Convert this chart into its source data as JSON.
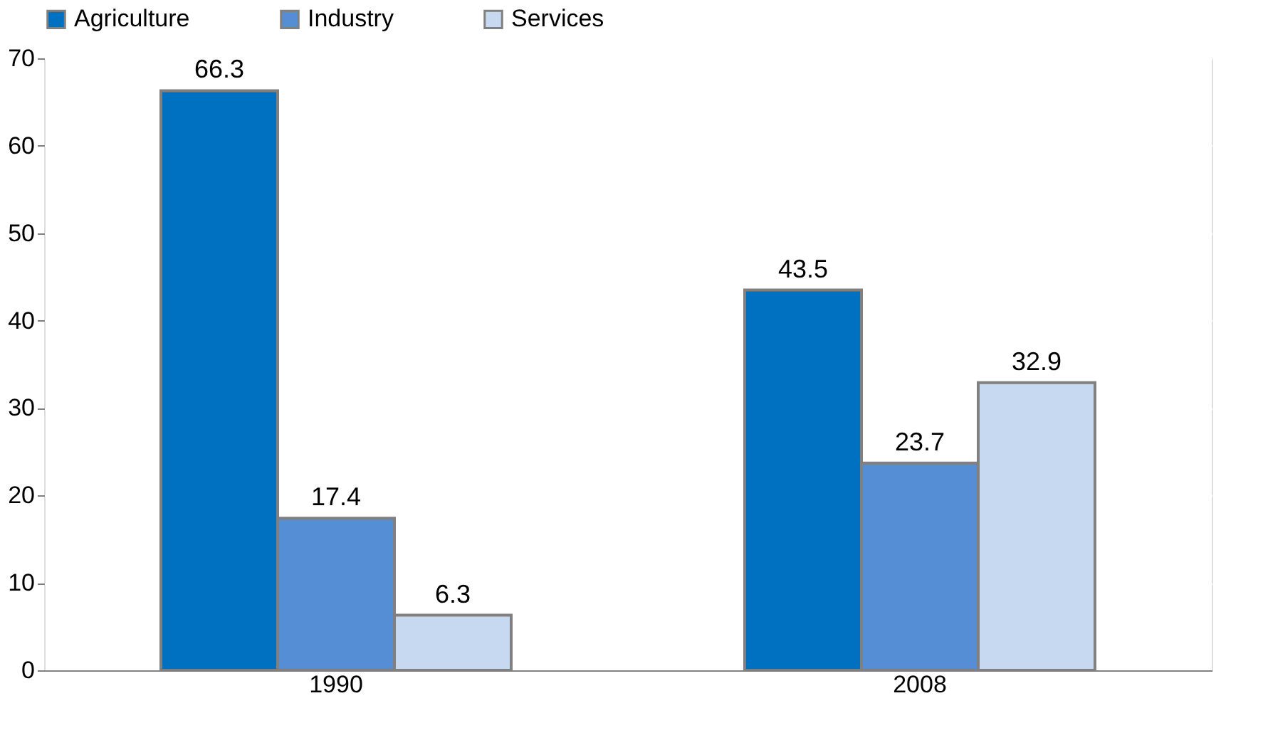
{
  "chart_data": {
    "type": "bar",
    "categories": [
      "1990",
      "2008"
    ],
    "series": [
      {
        "name": "Agriculture",
        "color": "#0070c0",
        "values": [
          66.3,
          43.5
        ]
      },
      {
        "name": "Industry",
        "color": "#558ed5",
        "values": [
          17.4,
          23.7
        ]
      },
      {
        "name": "Services",
        "color": "#c6d9f1",
        "values": [
          6.3,
          32.9
        ]
      }
    ],
    "ylim": [
      0,
      70
    ],
    "yticks": [
      0,
      10,
      20,
      30,
      40,
      50,
      60,
      70
    ],
    "grid": "y",
    "legend": "top",
    "data_labels": true
  }
}
